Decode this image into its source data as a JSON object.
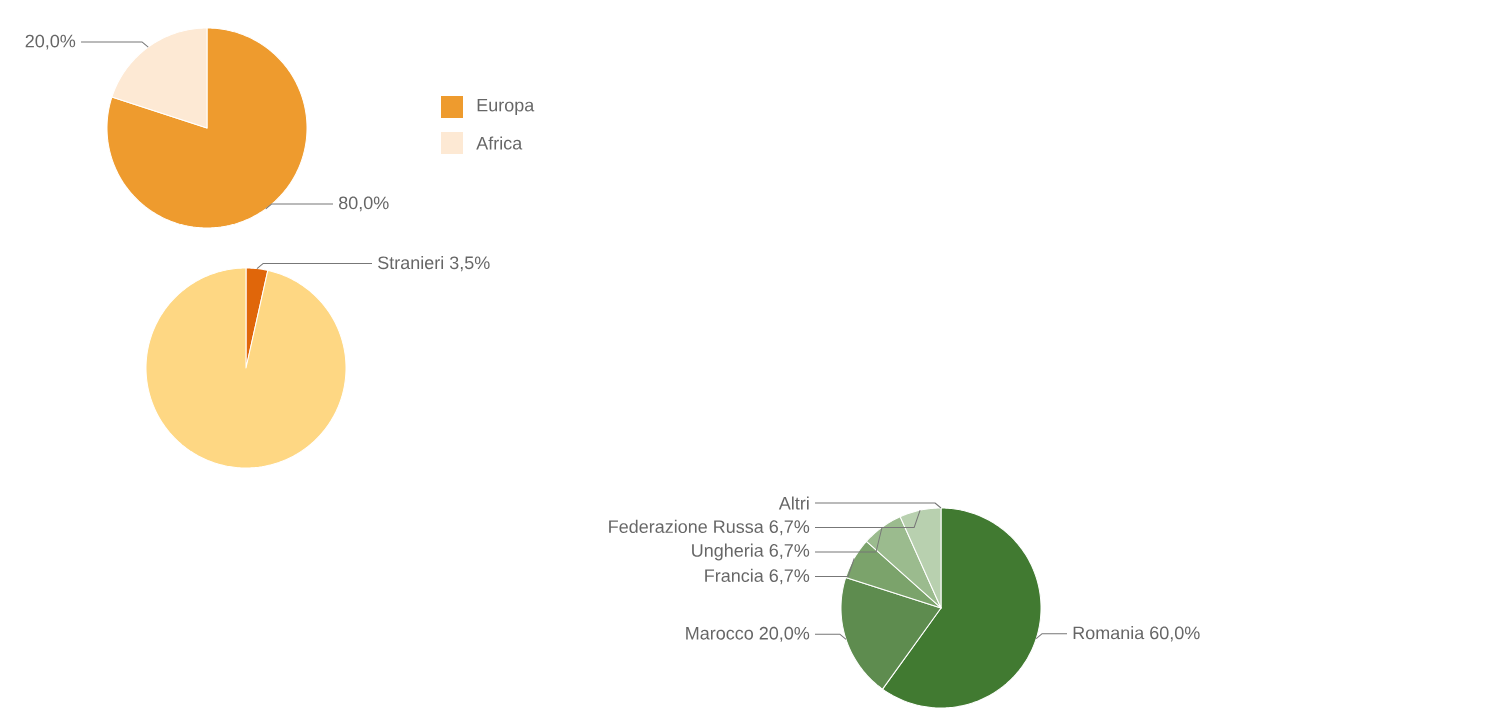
{
  "chart_data": [
    {
      "type": "pie",
      "categories": [
        "Europa",
        "Africa"
      ],
      "values": [
        80.0,
        20.0
      ],
      "colors": [
        "#ee9b2e",
        "#fde9d4"
      ],
      "value_labels": [
        "80,0%",
        "20,0%"
      ],
      "legend": "right"
    },
    {
      "type": "pie",
      "categories": [
        "Stranieri",
        null
      ],
      "values": [
        3.5,
        96.5
      ],
      "colors": [
        "#e0660a",
        "#fed783"
      ],
      "value_labels": [
        "3,5%",
        null
      ]
    },
    {
      "type": "pie",
      "categories": [
        "Romania",
        "Marocco",
        "Francia",
        "Ungheria",
        "Federazione Russa",
        "Altri"
      ],
      "values": [
        60.0,
        20.0,
        6.7,
        6.7,
        6.7,
        0
      ],
      "colors": [
        "#417a31",
        "#5e8c4f",
        "#7ba36b",
        "#9bbb8e",
        "#b8d0af",
        "#d0e0c8"
      ],
      "value_labels": [
        "60,0%",
        "20,0%",
        "6,7%",
        "6,7%",
        "6,7%",
        null
      ]
    }
  ]
}
